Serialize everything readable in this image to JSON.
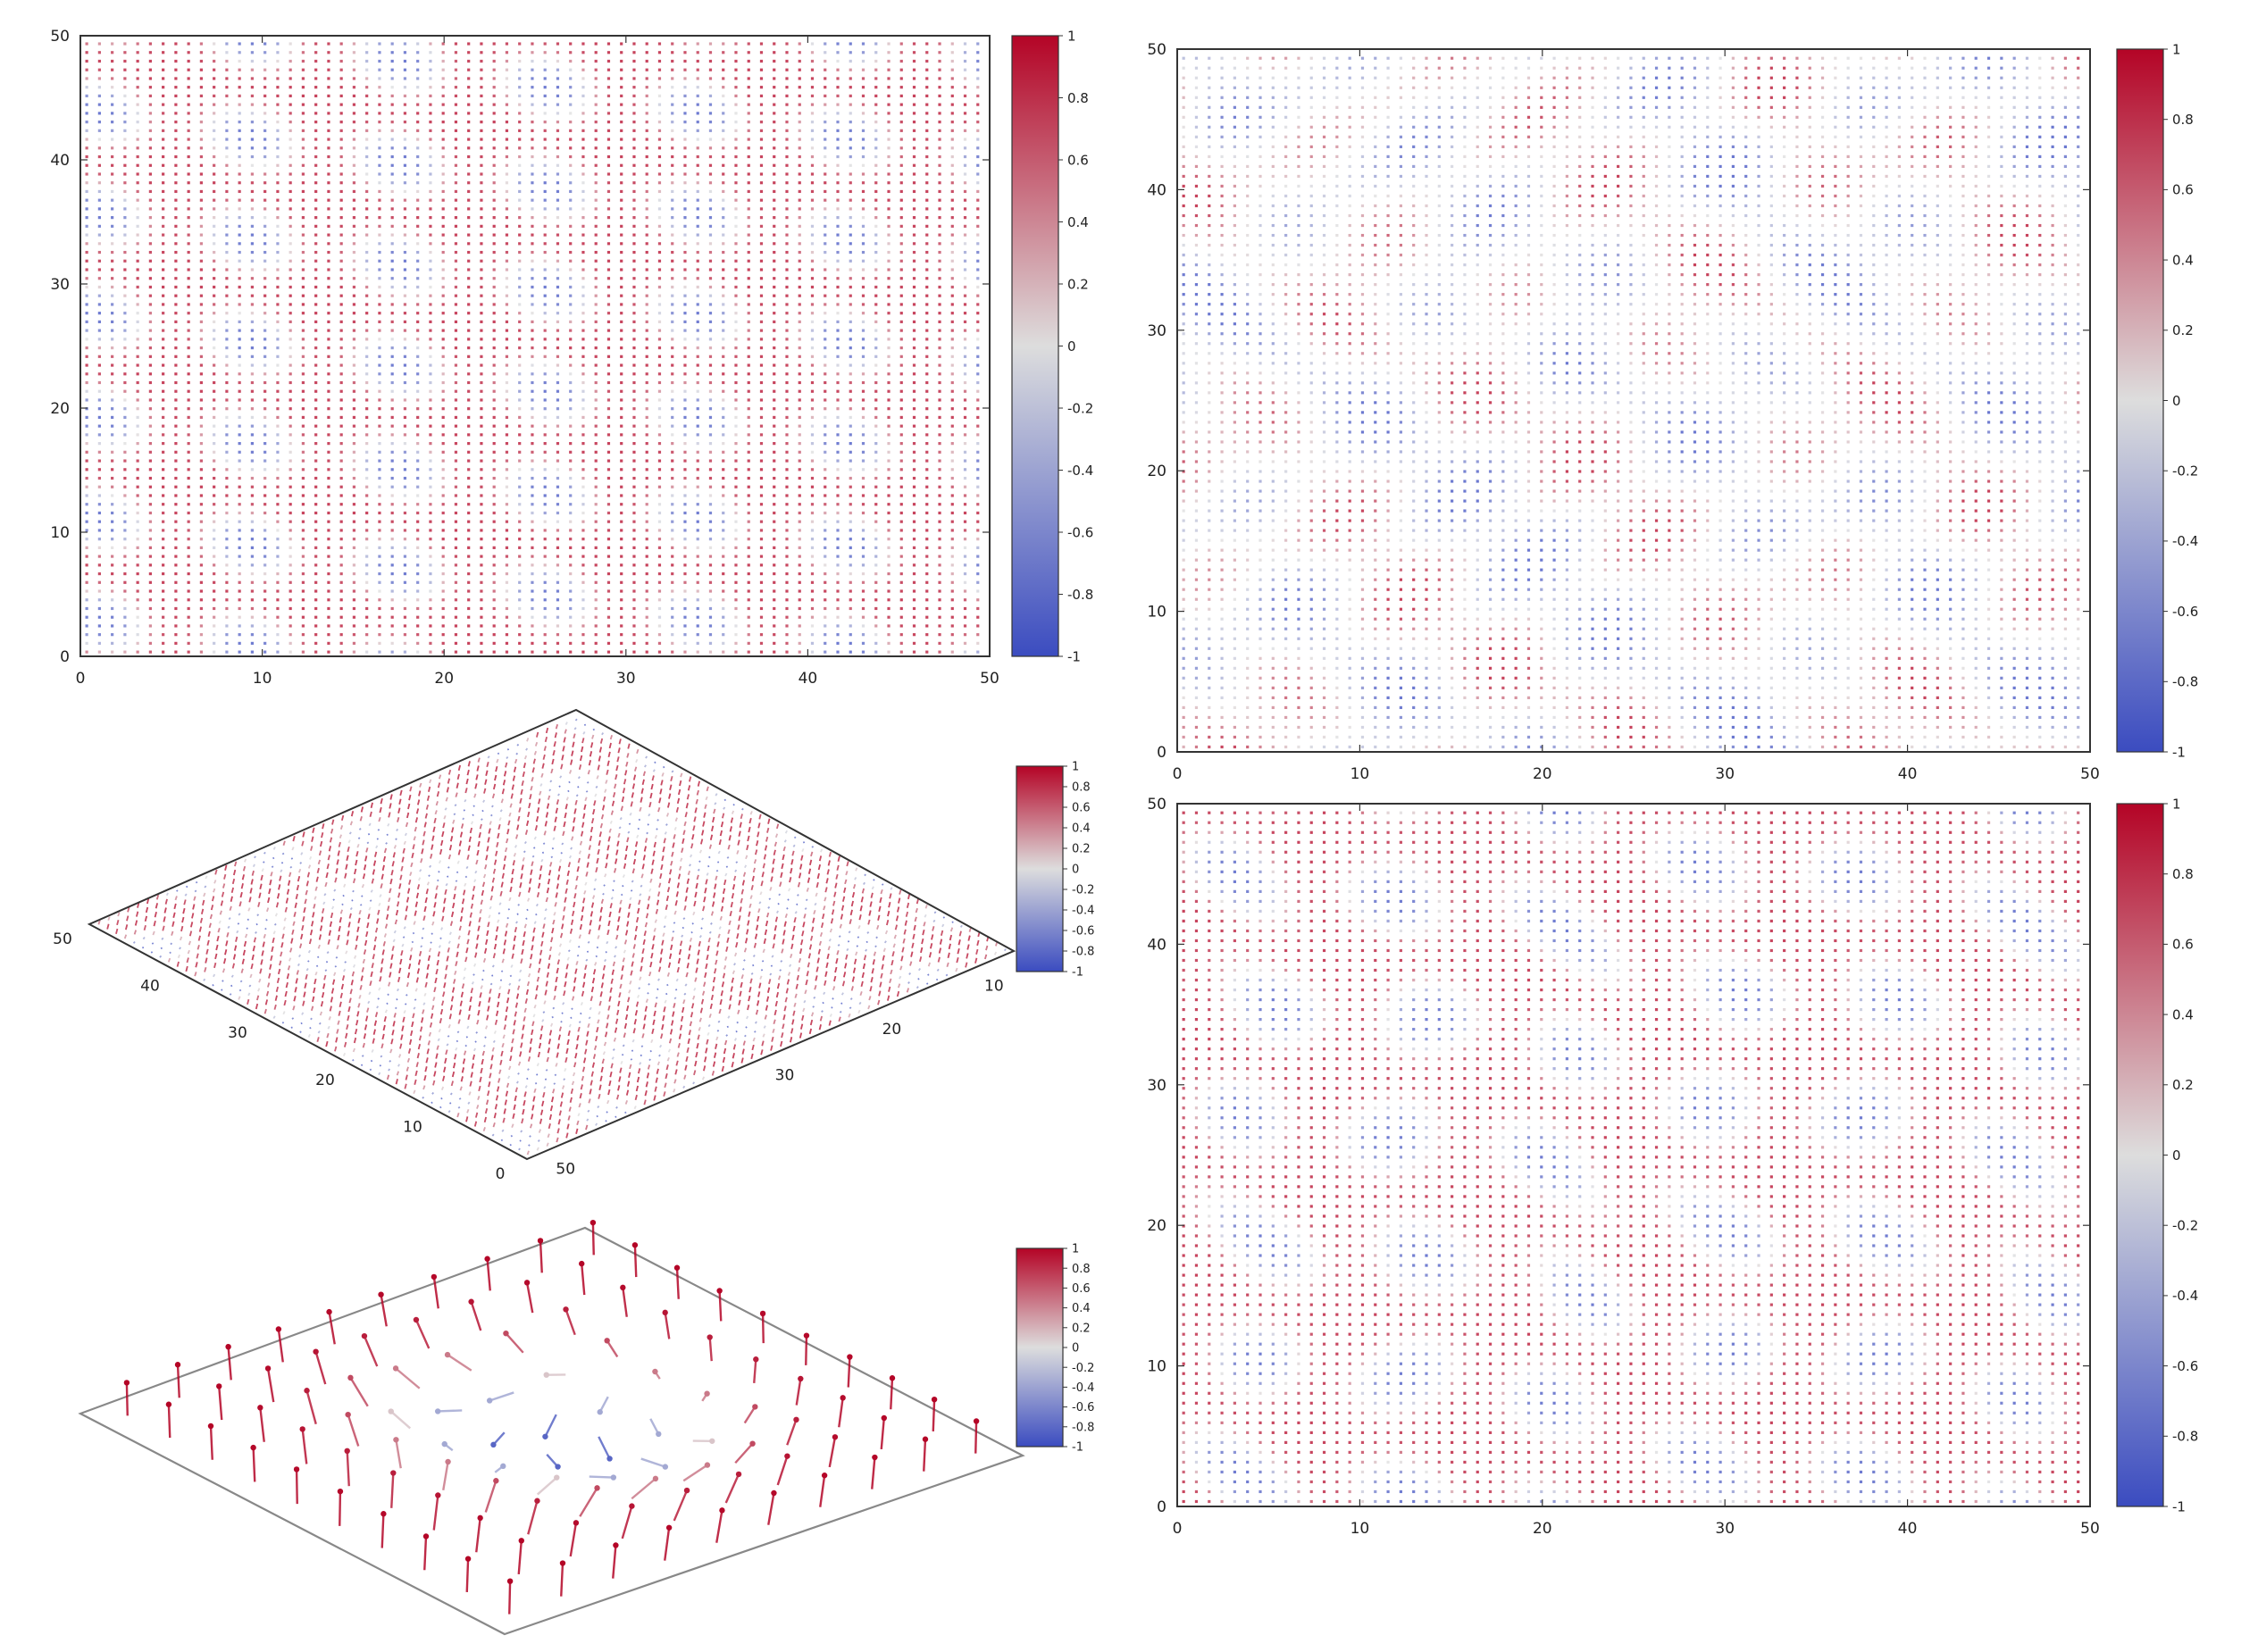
{
  "chart_data": [
    {
      "id": "topleft",
      "type": "heatmap",
      "view": "2d",
      "title": "",
      "xlabel": "",
      "ylabel": "",
      "xlim": [
        0,
        50
      ],
      "ylim": [
        0,
        50
      ],
      "xticks": [
        "0",
        "10",
        "20",
        "30",
        "40",
        "50"
      ],
      "yticks": [
        "0",
        "10",
        "20",
        "30",
        "40",
        "50"
      ],
      "field": "skyrmion-lattice",
      "grid_step": 0.7,
      "colorbar": {
        "min": -1,
        "max": 1,
        "ticks": [
          "1",
          "0.8",
          "0.6",
          "0.4",
          "0.2",
          "0",
          "-0.2",
          "-0.4",
          "-0.6",
          "-0.8",
          "-1"
        ]
      }
    },
    {
      "id": "middleleft",
      "type": "heatmap",
      "view": "3d",
      "title": "",
      "xlim": [
        0,
        50
      ],
      "ylim": [
        0,
        50
      ],
      "xticks": [
        "10",
        "20",
        "30",
        "50"
      ],
      "yticks": [
        "0",
        "10",
        "20",
        "30",
        "40",
        "50"
      ],
      "field": "skyrmion-lattice",
      "colorbar": {
        "min": -1,
        "max": 1,
        "ticks": [
          "1",
          "0.8",
          "0.6",
          "0.4",
          "0.2",
          "0",
          "-0.2",
          "-0.4",
          "-0.6",
          "-0.8",
          "-1"
        ]
      }
    },
    {
      "id": "bottomleft",
      "type": "heatmap",
      "view": "3d-vectors",
      "title": "",
      "field": "single-skyrmion",
      "colorbar": {
        "min": -1,
        "max": 1,
        "ticks": [
          "1",
          "0.8",
          "0.6",
          "0.4",
          "0.2",
          "0",
          "-0.2",
          "-0.4",
          "-0.6",
          "-0.8",
          "-1"
        ]
      }
    },
    {
      "id": "topright",
      "type": "heatmap",
      "view": "2d",
      "title": "",
      "xlim": [
        0,
        50
      ],
      "ylim": [
        0,
        50
      ],
      "xticks": [
        "0",
        "10",
        "20",
        "30",
        "40",
        "50"
      ],
      "yticks": [
        "0",
        "10",
        "20",
        "30",
        "40",
        "50"
      ],
      "field": "disordered",
      "grid_step": 0.7,
      "colorbar": {
        "min": -1,
        "max": 1,
        "ticks": [
          "1",
          "0.8",
          "0.6",
          "0.4",
          "0.2",
          "0",
          "-0.2",
          "-0.4",
          "-0.6",
          "-0.8",
          "-1"
        ]
      }
    },
    {
      "id": "bottomright",
      "type": "heatmap",
      "view": "2d",
      "title": "",
      "xlim": [
        0,
        50
      ],
      "ylim": [
        0,
        50
      ],
      "xticks": [
        "0",
        "10",
        "20",
        "30",
        "40",
        "50"
      ],
      "yticks": [
        "0",
        "10",
        "20",
        "30",
        "40",
        "50"
      ],
      "field": "distorted-lattice",
      "grid_step": 0.7,
      "colorbar": {
        "min": -1,
        "max": 1,
        "ticks": [
          "1",
          "0.8",
          "0.6",
          "0.4",
          "0.2",
          "0",
          "-0.2",
          "-0.4",
          "-0.6",
          "-0.8",
          "-1"
        ]
      }
    }
  ],
  "colors": {
    "colormap_low": "#3b4cc0",
    "colormap_mid": "#dddddd",
    "colormap_high": "#b40426",
    "frame": "#333333",
    "frame_3d": "#888888"
  }
}
